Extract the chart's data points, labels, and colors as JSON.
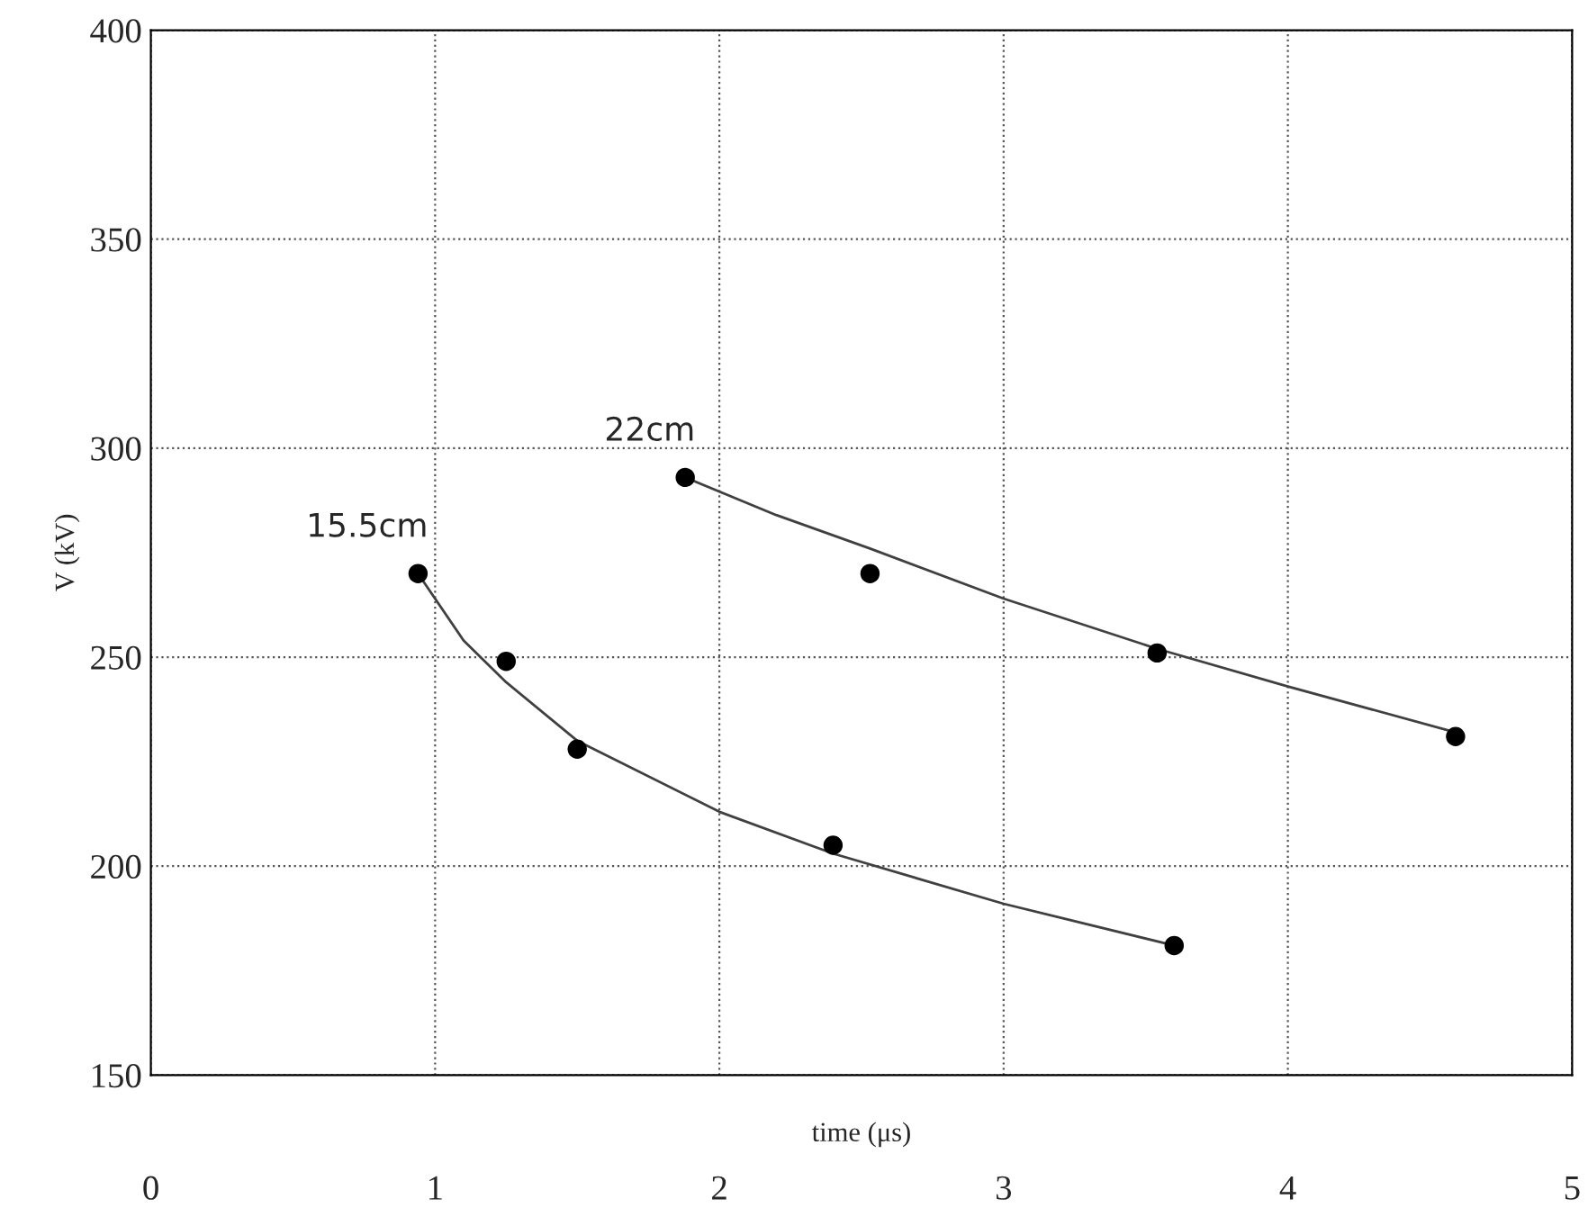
{
  "chart_data": {
    "type": "scatter",
    "xlabel": "time (μs)",
    "ylabel": "V (kV)",
    "xlim": [
      0,
      5
    ],
    "xticks": [
      0,
      1,
      2,
      3,
      4,
      5
    ],
    "ylim": [
      150,
      400
    ],
    "yticks": [
      150,
      200,
      250,
      300,
      350,
      400
    ],
    "grid": true,
    "line_style": "solid",
    "series": [
      {
        "name": "15.5cm",
        "marker": "circle",
        "color": "#000000",
        "x": [
          0.94,
          1.25,
          1.5,
          2.4,
          3.6
        ],
        "values": [
          270,
          249,
          228,
          205,
          181
        ]
      },
      {
        "name": "22cm",
        "marker": "circle",
        "color": "#000000",
        "x": [
          1.88,
          2.53,
          3.54,
          4.59
        ],
        "values": [
          293,
          270,
          251,
          231
        ]
      },
      {
        "type": "line",
        "marker": "none",
        "color": "#404040",
        "x": [
          0.94,
          1.1,
          1.25,
          1.5,
          2.0,
          2.4,
          3.0,
          3.6
        ],
        "values": [
          270,
          254,
          244,
          230,
          213,
          203,
          191,
          181
        ]
      },
      {
        "type": "line",
        "marker": "none",
        "color": "#404040",
        "x": [
          1.88,
          2.2,
          2.53,
          3.0,
          3.54,
          4.0,
          4.59
        ],
        "values": [
          293,
          284,
          276,
          264,
          252,
          243,
          232
        ]
      }
    ]
  }
}
